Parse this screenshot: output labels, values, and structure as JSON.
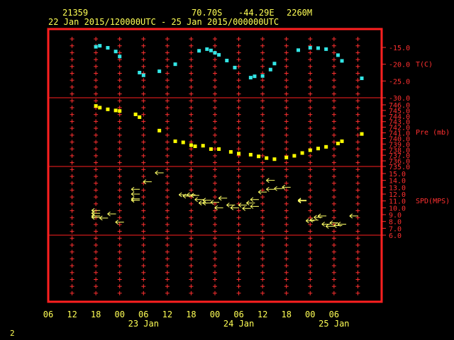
{
  "header": {
    "station_id": "21359",
    "lat": "70.70S",
    "lon": "-44.29E",
    "elev": "2260M",
    "time_range": "22 Jan 2015/120000UTC - 25 Jan 2015/000000UTC"
  },
  "page_number": "2",
  "colors": {
    "frame": "#ff2020",
    "temp": "#33e6e6",
    "pressure": "#ffff00",
    "wind": "#ffff66",
    "text": "#ffff55",
    "axis": "#ff3030"
  },
  "chart_data": [
    {
      "type": "scatter",
      "panel": "temperature",
      "ylabel": "T(C)",
      "ylim": [
        -30,
        -10
      ],
      "yticks": [
        -15.0,
        -20.0,
        -25.0,
        -30.0
      ],
      "ytick_labels": [
        "-15.0",
        "-20.0",
        "-25.0",
        "-30.0"
      ],
      "x_hours": [
        12,
        13,
        15,
        17,
        18,
        23,
        24,
        28,
        32,
        38,
        40,
        41,
        42,
        43,
        45,
        47,
        51,
        52,
        54,
        56,
        57,
        63,
        66,
        68,
        70,
        73,
        74,
        79
      ],
      "values": [
        -14.8,
        -14.5,
        -15.1,
        -16.2,
        -17.7,
        -22.5,
        -23.3,
        -22.1,
        -20.0,
        -16.0,
        -15.5,
        -15.9,
        -16.6,
        -17.2,
        -18.9,
        -21.0,
        -24.0,
        -23.6,
        -23.5,
        -21.6,
        -19.8,
        -15.8,
        -15.1,
        -15.2,
        -15.5,
        -17.3,
        -19.0,
        -24.2
      ]
    },
    {
      "type": "scatter",
      "panel": "pressure",
      "ylabel": "Pre (mb)",
      "ylim": [
        735,
        747
      ],
      "yticks": [
        735,
        736,
        737,
        738,
        739,
        740,
        741,
        742,
        743,
        744,
        745,
        746
      ],
      "ytick_labels": [
        "735.0",
        "736.0",
        "737.0",
        "738.0",
        "739.0",
        "740.0",
        "741.0",
        "742.0",
        "743.0",
        "744.0",
        "745.0",
        "746.0"
      ],
      "x_hours": [
        12,
        13,
        15,
        17,
        18,
        22,
        23,
        28,
        32,
        34,
        36,
        37,
        39,
        41,
        43,
        46,
        48,
        51,
        53,
        55,
        57,
        60,
        62,
        64,
        66,
        68,
        70,
        73,
        74,
        79
      ],
      "values": [
        745.8,
        745.5,
        745.2,
        745.0,
        744.9,
        744.3,
        743.8,
        741.4,
        739.5,
        739.3,
        738.8,
        738.6,
        738.7,
        738.1,
        738.1,
        737.6,
        737.3,
        737.1,
        736.8,
        736.5,
        736.3,
        736.6,
        736.9,
        737.4,
        737.9,
        738.2,
        738.5,
        739.1,
        739.5,
        740.8
      ]
    },
    {
      "type": "vector",
      "panel": "wind",
      "ylabel": "SPD(MPS)",
      "ylim": [
        6,
        16
      ],
      "yticks": [
        6,
        7,
        8,
        9,
        10,
        11,
        12,
        13,
        14,
        15
      ],
      "ytick_labels": [
        "6.0",
        "7.0",
        "8.0",
        "9.0",
        "10.0",
        "11.0",
        "12.0",
        "13.0",
        "14.0",
        "15.0"
      ],
      "x_hours": [
        12,
        12,
        12,
        12,
        14,
        16,
        18,
        22,
        22,
        22,
        22,
        25,
        28,
        34,
        35,
        36,
        37,
        38,
        39,
        40,
        40,
        42,
        43,
        44,
        46,
        47,
        49,
        50,
        51,
        52,
        52,
        54,
        56,
        56,
        58,
        60,
        64,
        64,
        66,
        67,
        68,
        69,
        70,
        71,
        72,
        73,
        74,
        77
      ],
      "speeds": [
        9.2,
        9.6,
        8.6,
        8.8,
        8.5,
        9.1,
        7.9,
        11.3,
        12.7,
        12.0,
        11.1,
        13.8,
        15.1,
        11.9,
        11.7,
        11.9,
        11.8,
        11.2,
        10.7,
        10.7,
        11.1,
        10.8,
        10.0,
        11.4,
        10.4,
        10.0,
        10.4,
        9.9,
        10.7,
        10.2,
        11.2,
        12.3,
        12.7,
        14.0,
        12.8,
        13.0,
        11.1,
        11.0,
        8.1,
        8.2,
        8.6,
        8.8,
        7.6,
        7.3,
        7.8,
        7.4,
        7.6,
        8.8
      ]
    }
  ],
  "x_axis": {
    "xlim": [
      0,
      84
    ],
    "ticks": [
      0,
      6,
      12,
      18,
      24,
      30,
      36,
      42,
      48,
      54,
      60,
      66,
      72,
      78,
      84
    ],
    "tick_labels": [
      "06",
      "12",
      "18",
      "00",
      "06",
      "12",
      "18",
      "00",
      "06",
      "12",
      "18",
      "00",
      "06"
    ],
    "date_labels": [
      "23 Jan",
      "24 Jan",
      "25 Jan"
    ]
  }
}
